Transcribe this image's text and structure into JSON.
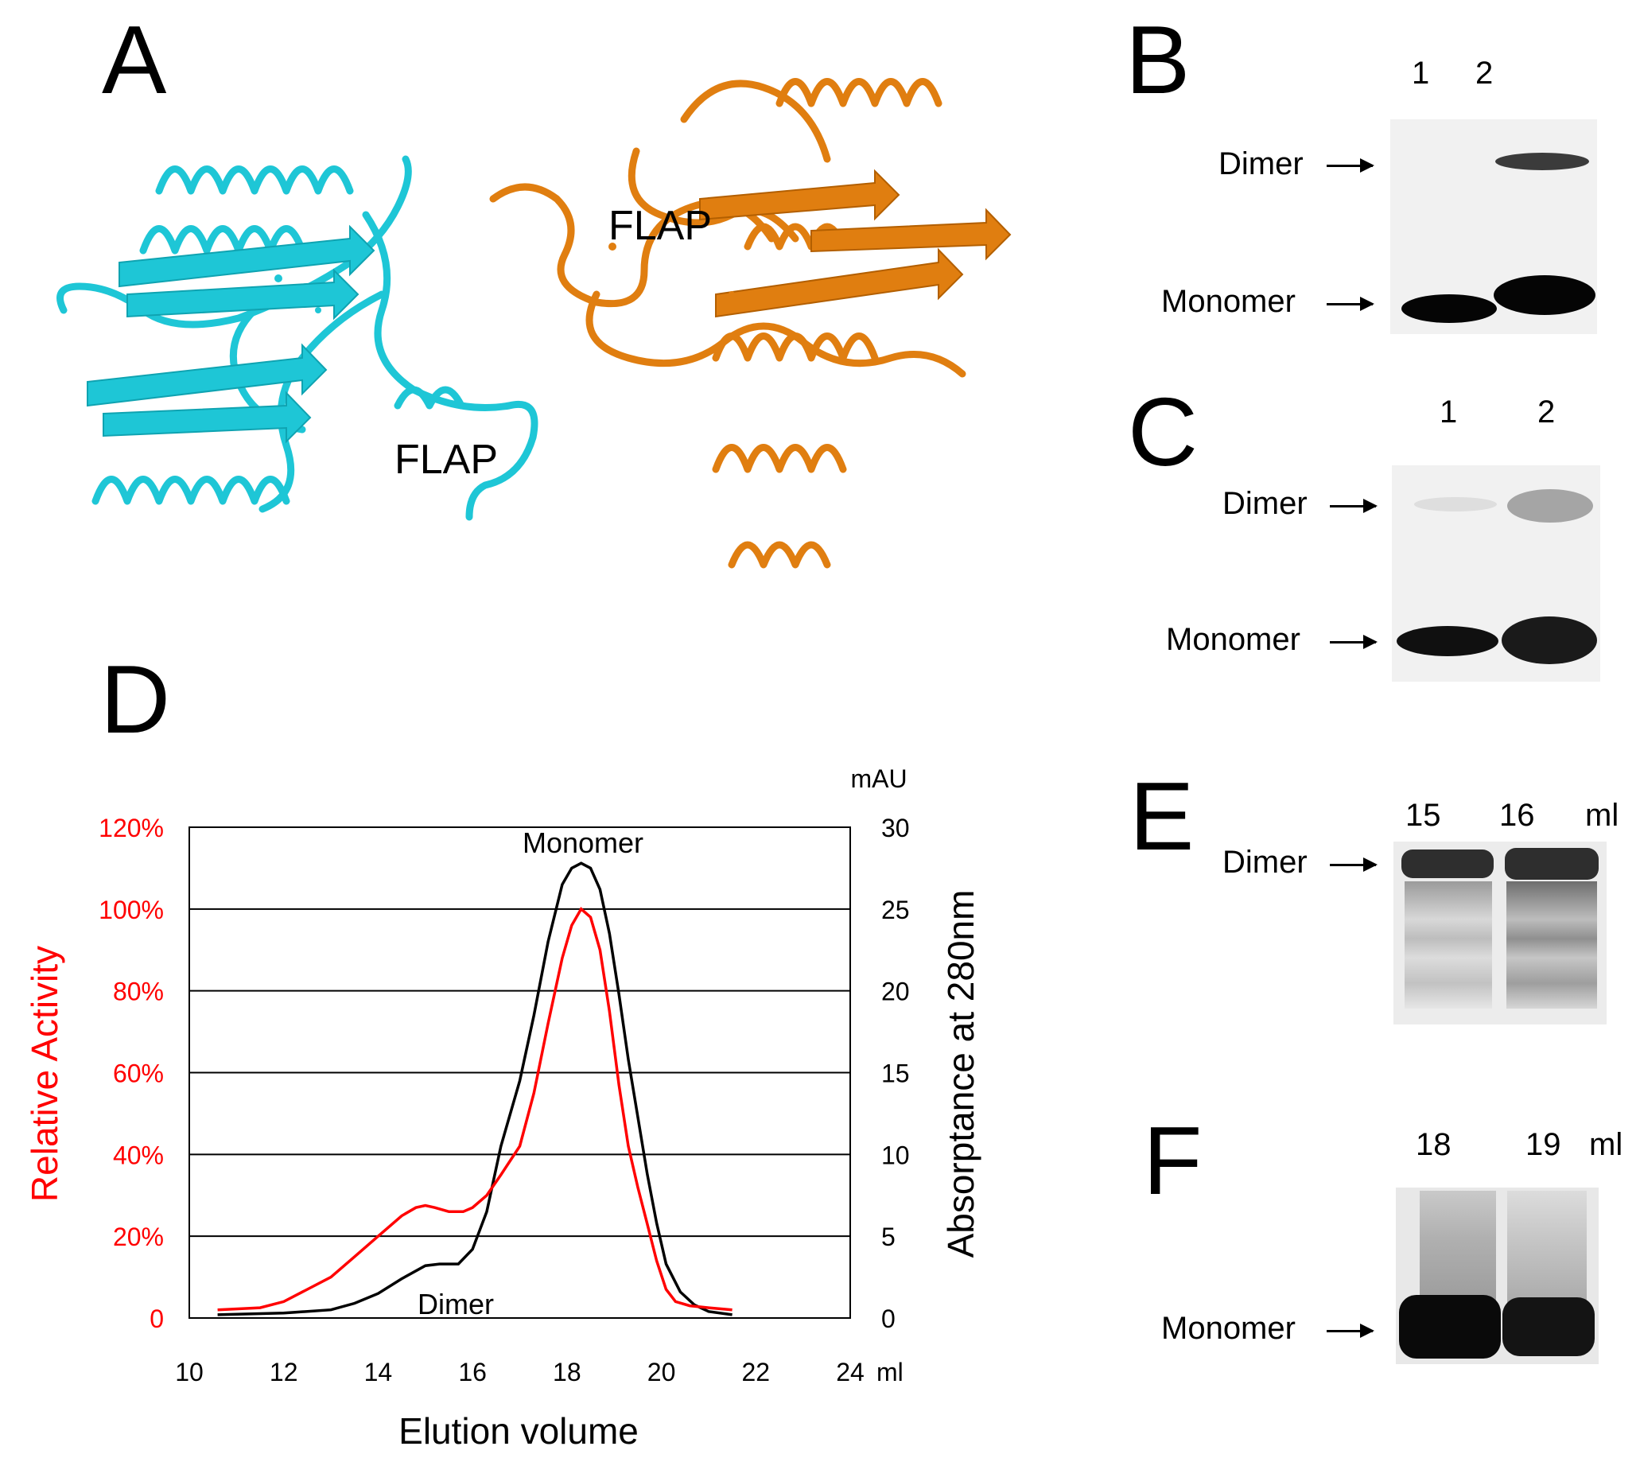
{
  "panels": {
    "a": "A",
    "b": "B",
    "c": "C",
    "d": "D",
    "e": "E",
    "f": "F"
  },
  "structure": {
    "flap_left": "FLAP",
    "flap_right": "FLAP",
    "colors": {
      "chain_a": "#1ec6d6",
      "chain_b": "#e07e10"
    }
  },
  "blot_b": {
    "lanes": [
      "1",
      "2"
    ],
    "dimer": "Dimer",
    "monomer": "Monomer",
    "dimer_intensity": [
      0.0,
      0.85
    ],
    "monomer_intensity": [
      1.0,
      1.0
    ]
  },
  "blot_c": {
    "lanes": [
      "1",
      "2"
    ],
    "dimer": "Dimer",
    "monomer": "Monomer",
    "dimer_intensity": [
      0.1,
      0.5
    ],
    "monomer_intensity": [
      1.0,
      1.0
    ]
  },
  "blot_e": {
    "lanes": [
      "15",
      "16"
    ],
    "unit": "ml",
    "dimer": "Dimer"
  },
  "blot_f": {
    "lanes": [
      "18",
      "19"
    ],
    "unit": "ml",
    "monomer": "Monomer"
  },
  "chart_data": {
    "type": "line",
    "xlabel": "Elution volume",
    "x_unit": "ml",
    "xlim": [
      10,
      24
    ],
    "x_ticks": [
      "10",
      "12",
      "14",
      "16",
      "18",
      "20",
      "22",
      "24"
    ],
    "ylabel_left": "Relative Activity",
    "ylim_left": [
      0,
      120
    ],
    "y_ticks_left": [
      "0",
      "20%",
      "40%",
      "60%",
      "80%",
      "100%",
      "120%"
    ],
    "ylabel_right": "Absorptance at 280nm",
    "y_unit_right": "mAU",
    "ylim_right": [
      0,
      30
    ],
    "y_ticks_right": [
      "0",
      "5",
      "10",
      "15",
      "20",
      "25",
      "30"
    ],
    "grid": true,
    "annotations": {
      "monomer": "Monomer",
      "dimer": "Dimer"
    },
    "colors": {
      "activity": "#ff0000",
      "absorptance": "#000000",
      "left_axis": "#ff0000"
    },
    "series": [
      {
        "axis": "left",
        "x": [
          10.6,
          11.5,
          12.0,
          12.5,
          13.0,
          13.5,
          14.0,
          14.5,
          14.8,
          15.0,
          15.2,
          15.5,
          15.8,
          16.0,
          16.3,
          16.6,
          17.0,
          17.3,
          17.6,
          17.9,
          18.1,
          18.3,
          18.5,
          18.7,
          18.9,
          19.1,
          19.3,
          19.5,
          19.7,
          19.9,
          20.1,
          20.3,
          20.6,
          21.0,
          21.5
        ],
        "y": [
          2,
          2.5,
          4,
          7,
          10,
          15,
          20,
          25,
          27,
          27.5,
          27,
          26,
          26,
          27,
          30,
          35,
          42,
          55,
          72,
          88,
          96,
          100,
          98,
          90,
          75,
          57,
          42,
          32,
          23,
          14,
          7,
          4,
          3,
          2.5,
          2
        ]
      },
      {
        "axis": "right",
        "x": [
          10.6,
          12.0,
          13.0,
          13.5,
          14.0,
          14.5,
          15.0,
          15.3,
          15.7,
          16.0,
          16.3,
          16.6,
          17.0,
          17.3,
          17.6,
          17.9,
          18.1,
          18.3,
          18.5,
          18.7,
          18.9,
          19.1,
          19.3,
          19.5,
          19.7,
          19.9,
          20.1,
          20.4,
          20.7,
          21.0,
          21.5
        ],
        "y": [
          0.2,
          0.3,
          0.5,
          0.9,
          1.5,
          2.4,
          3.2,
          3.3,
          3.3,
          4.2,
          6.5,
          10.5,
          14.5,
          18.5,
          23,
          26.5,
          27.5,
          27.8,
          27.5,
          26.2,
          23.5,
          19.8,
          15.8,
          12.3,
          8.8,
          5.8,
          3.3,
          1.6,
          0.8,
          0.4,
          0.2
        ]
      }
    ]
  }
}
